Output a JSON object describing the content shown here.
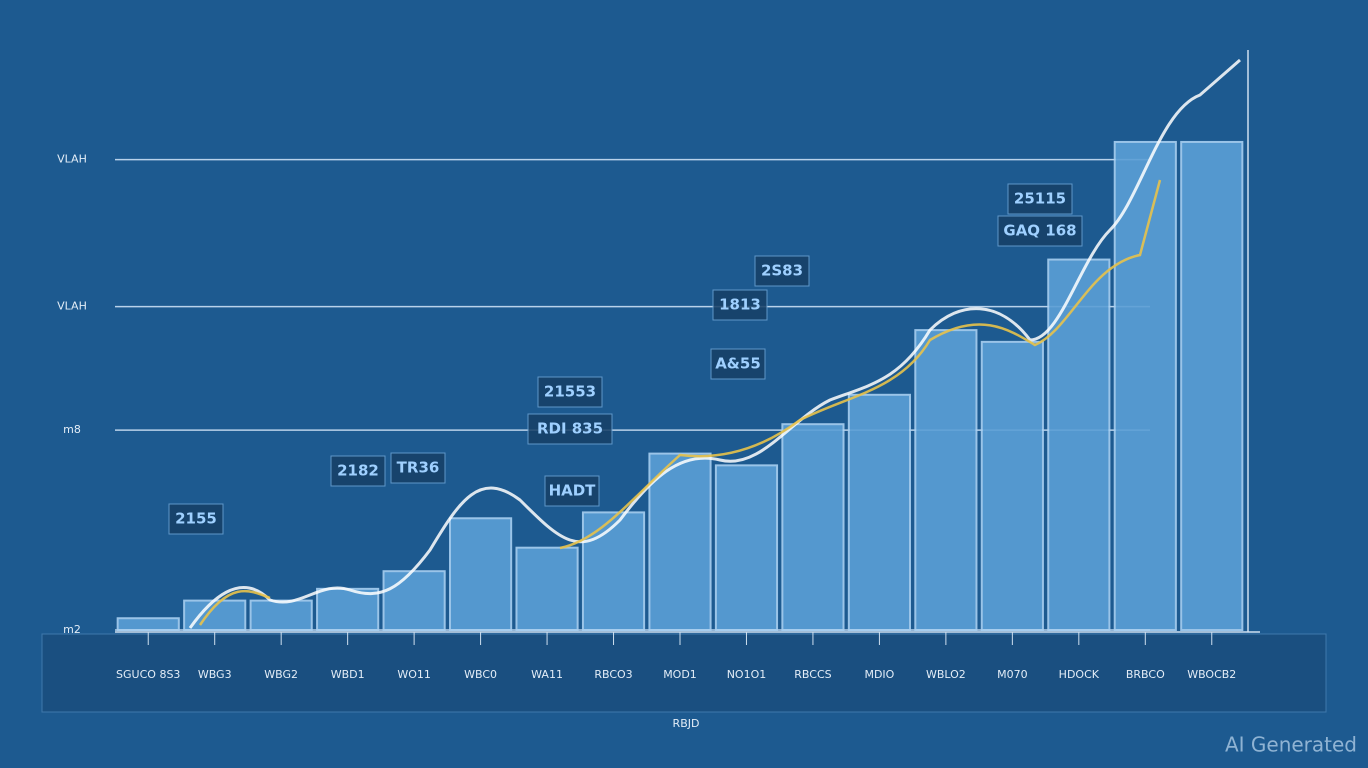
{
  "chart_data": {
    "type": "bar",
    "categories": [
      "SGUCO 8S3",
      "WBG3",
      "WBG2",
      "WBD1",
      "WO11",
      "WBC0",
      "WA11",
      "RBCO3",
      "MOD1",
      "NO1O1",
      "RBCCS",
      "MDIO",
      "WBLO2",
      "M070",
      "HDOCK",
      "BRBCO",
      "WBOCB2"
    ],
    "values": [
      2,
      5,
      5,
      7,
      10,
      19,
      14,
      20,
      30,
      28,
      35,
      40,
      51,
      49,
      63,
      83,
      83
    ],
    "color": "#5b9fd6",
    "ylim": [
      0,
      100
    ],
    "yticks": [
      {
        "value": 0,
        "label": "m2"
      },
      {
        "value": 34,
        "label": "m8"
      },
      {
        "value": 55,
        "label": "VLAH"
      },
      {
        "value": 80,
        "label": "VLAH"
      }
    ],
    "grid": true,
    "x_label": "RBJD",
    "annotations": [
      "2155",
      "2182",
      "TR36",
      "21553",
      "RDI 835",
      "HADT",
      "2S83",
      "1813",
      "A&55",
      "25115",
      "GAQ 168"
    ],
    "watermark": "AI Generated"
  }
}
